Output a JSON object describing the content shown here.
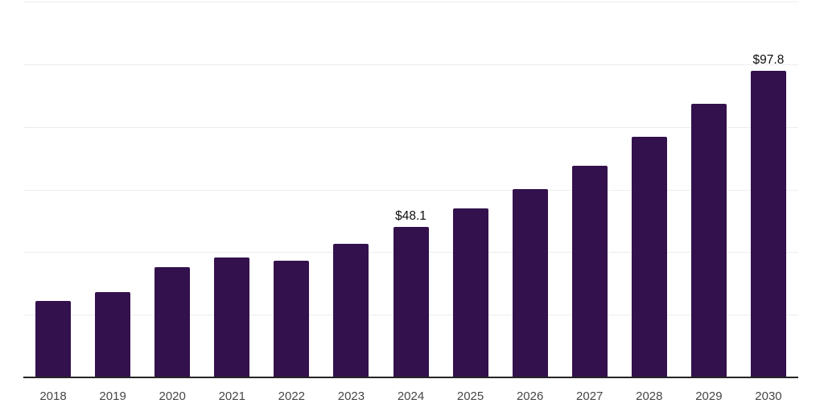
{
  "chart_data": {
    "type": "bar",
    "categories": [
      "2018",
      "2019",
      "2020",
      "2021",
      "2022",
      "2023",
      "2024",
      "2025",
      "2026",
      "2027",
      "2028",
      "2029",
      "2030"
    ],
    "values": [
      24.4,
      27.2,
      35.1,
      38.3,
      37.3,
      42.7,
      48.1,
      53.9,
      60.2,
      67.7,
      76.9,
      87.3,
      97.8
    ],
    "bar_labels": [
      "",
      "",
      "",
      "",
      "",
      "",
      "$48.1",
      "",
      "",
      "",
      "",
      "",
      "$97.8"
    ],
    "title": "",
    "subtitle": "",
    "xlabel": "",
    "ylabel": "",
    "ylim": [
      0,
      120
    ],
    "gridline_values": [
      20,
      40,
      60,
      80,
      100,
      120
    ],
    "grid": true,
    "legend": false,
    "y_tick_labels_visible": false,
    "colors": {
      "bar": "#33114c",
      "axis": "#262626",
      "gridline": "#ededed",
      "tick_label": "#464646",
      "value_label": "#0d0d0d"
    }
  }
}
